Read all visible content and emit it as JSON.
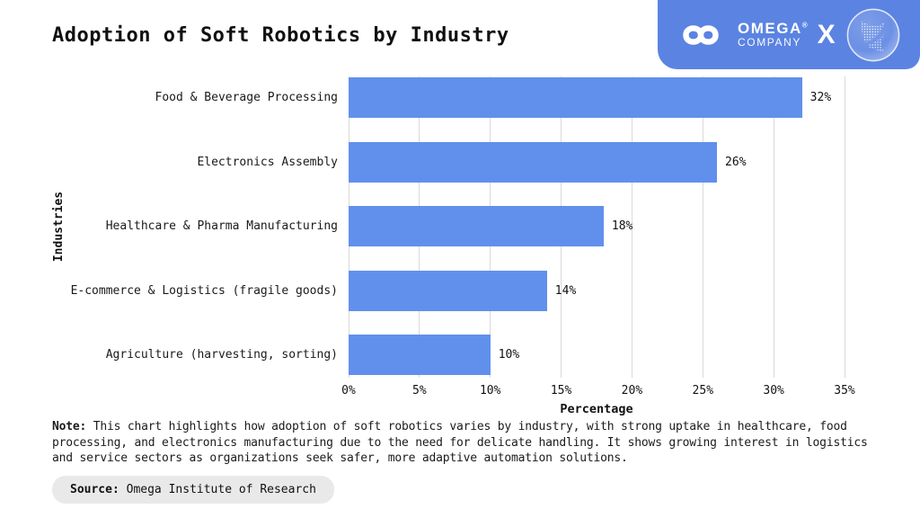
{
  "page": {
    "title": "Adoption of Soft Robotics by Industry"
  },
  "logo": {
    "brand_top": "OMEGA",
    "registered_mark": "®",
    "brand_bottom": "COMPANY",
    "x_mark": "X",
    "badge_color": "#5b83e2"
  },
  "chart_data": {
    "type": "bar",
    "orientation": "horizontal",
    "title": "Adoption of Soft Robotics by Industry",
    "categories": [
      "Food & Beverage Processing",
      "Electronics Assembly",
      "Healthcare & Pharma Manufacturing",
      "E-commerce & Logistics (fragile goods)",
      "Agriculture (harvesting, sorting)"
    ],
    "values": [
      32,
      26,
      18,
      14,
      10
    ],
    "value_labels": [
      "32%",
      "26%",
      "18%",
      "14%",
      "10%"
    ],
    "xlabel": "Percentage",
    "ylabel": "Industries",
    "xlim": [
      0,
      35
    ],
    "tick_step": 5,
    "x_ticks": [
      "0%",
      "5%",
      "10%",
      "15%",
      "20%",
      "25%",
      "30%",
      "35%"
    ],
    "grid": "vertical",
    "legend": "none",
    "bar_color": "#6190ec",
    "gridline_color": "#d9d9d9"
  },
  "note": {
    "label": "Note:",
    "text": "This chart highlights how adoption of soft robotics varies by industry, with strong uptake in healthcare, food processing, and electronics manufacturing due to the need for delicate handling. It shows growing interest in logistics and service sectors as organizations seek safer, more adaptive automation solutions."
  },
  "source": {
    "label": "Source:",
    "text": "Omega Institute of Research"
  }
}
